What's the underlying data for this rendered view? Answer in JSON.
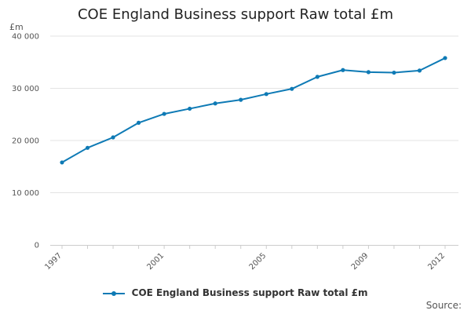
{
  "chart_data": {
    "type": "line",
    "title": "COE England Business support Raw total £m",
    "ylabel": "£m",
    "xlabel": "",
    "ylim": [
      0,
      40000
    ],
    "yticks": [
      0,
      10000,
      20000,
      30000,
      40000
    ],
    "ytick_labels": [
      "0",
      "10 000",
      "20 000",
      "30 000",
      "40 000"
    ],
    "xlim": [
      1997,
      2012
    ],
    "xticks": [
      1997,
      2001,
      2005,
      2009,
      2012
    ],
    "xtick_labels": [
      "1997",
      "2001",
      "2005",
      "2009",
      "2012"
    ],
    "grid": "horizontal",
    "legend_position": "bottom",
    "x": [
      1997,
      1998,
      1999,
      2000,
      2001,
      2002,
      2003,
      2004,
      2005,
      2006,
      2007,
      2008,
      2009,
      2010,
      2011,
      2012
    ],
    "series": [
      {
        "name": "COE England Business support Raw total £m",
        "color": "#0e7ab5",
        "values": [
          15800,
          18600,
          20600,
          23400,
          25100,
          26100,
          27100,
          27800,
          28900,
          29900,
          32200,
          33500,
          33100,
          33000,
          33400,
          35800
        ]
      }
    ]
  },
  "source_label": "Source:"
}
